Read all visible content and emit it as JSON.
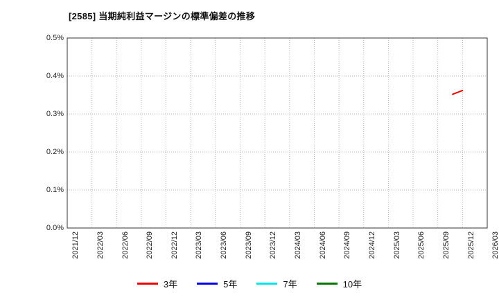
{
  "chart_data": {
    "type": "line",
    "title": "[2585]  当期純利益マージンの標準偏差の推移",
    "x_labels": [
      "2021/12",
      "2022/03",
      "2022/06",
      "2022/09",
      "2022/12",
      "2023/03",
      "2023/06",
      "2023/09",
      "2023/12",
      "2024/03",
      "2024/06",
      "2024/09",
      "2024/12",
      "2025/03",
      "2025/06",
      "2025/09",
      "2025/12",
      "2026/03"
    ],
    "ylim": [
      0.0,
      0.5
    ],
    "yticks": [
      0.0,
      0.1,
      0.2,
      0.3,
      0.4,
      0.5
    ],
    "ytick_labels": [
      "0.0%",
      "0.1%",
      "0.2%",
      "0.3%",
      "0.4%",
      "0.5%"
    ],
    "grid": true,
    "legend_position": "bottom",
    "series": [
      {
        "name": "3年",
        "color": "#ee0000",
        "points": [
          [
            15.6,
            0.352
          ],
          [
            16.0,
            0.362
          ]
        ]
      },
      {
        "name": "5年",
        "color": "#0000ee",
        "points": []
      },
      {
        "name": "7年",
        "color": "#00e5ee",
        "points": []
      },
      {
        "name": "10年",
        "color": "#007700",
        "points": []
      }
    ],
    "colors": {
      "grid": "#b5b5b5",
      "frame": "#333333"
    }
  }
}
